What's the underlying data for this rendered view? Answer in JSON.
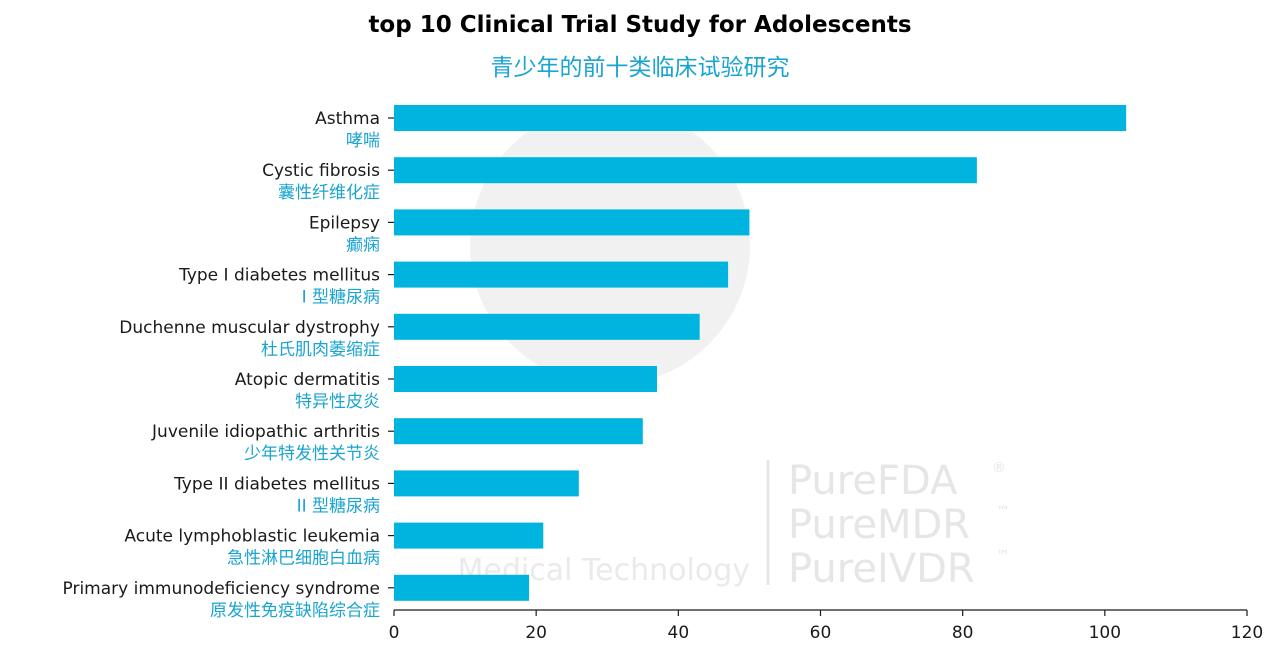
{
  "chart_data": {
    "type": "bar",
    "orientation": "horizontal",
    "title": "top 10 Clinical Trial Study for Adolescents",
    "subtitle": "青少年的前十类临床试验研究",
    "categories": [
      {
        "en": "Asthma",
        "zh": "哮喘"
      },
      {
        "en": "Cystic fibrosis",
        "zh": "囊性纤维化症"
      },
      {
        "en": "Epilepsy",
        "zh": "癫痫"
      },
      {
        "en": "Type I diabetes mellitus",
        "zh": "I 型糖尿病"
      },
      {
        "en": "Duchenne muscular dystrophy",
        "zh": "杜氏肌肉萎缩症"
      },
      {
        "en": "Atopic dermatitis",
        "zh": "特异性皮炎"
      },
      {
        "en": "Juvenile idiopathic arthritis",
        "zh": "少年特发性关节炎"
      },
      {
        "en": "Type II diabetes mellitus",
        "zh": "II 型糖尿病"
      },
      {
        "en": "Acute lymphoblastic leukemia",
        "zh": "急性淋巴细胞白血病"
      },
      {
        "en": "Primary immunodeficiency syndrome",
        "zh": "原发性免疫缺陷综合症"
      }
    ],
    "values": [
      103,
      82,
      50,
      47,
      43,
      37,
      35,
      26,
      21,
      19
    ],
    "xlim": [
      0,
      120
    ],
    "xticks": [
      0,
      20,
      40,
      60,
      80,
      100,
      120
    ],
    "xlabel": "",
    "ylabel": "",
    "grid": false,
    "legend": "none"
  },
  "colors": {
    "bar": "#00b4e0",
    "subtitle": "#1aa4d0",
    "category_zh": "#1aa4d0",
    "text": "#1a1a1a"
  },
  "watermark": {
    "brand_lines": [
      "PureFDA",
      "PureMDR",
      "PureIVDR"
    ],
    "trademarks": [
      "®",
      "™",
      "™"
    ],
    "sub_text": "Medical Technology"
  }
}
